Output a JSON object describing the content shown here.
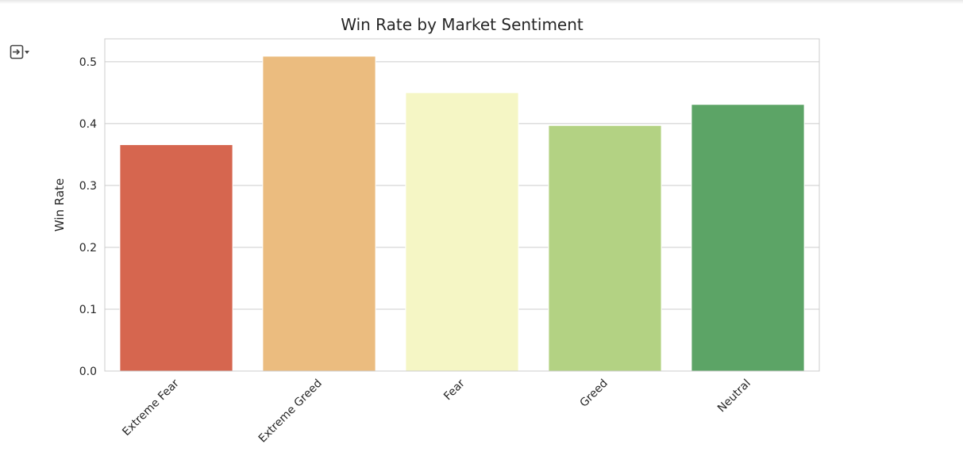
{
  "output_cell": {
    "toggle_icon": "output-collapse-icon"
  },
  "chart_data": {
    "type": "bar",
    "title": "Win Rate by Market Sentiment",
    "xlabel": "",
    "ylabel": "Win Rate",
    "categories": [
      "Extreme Fear",
      "Extreme Greed",
      "Fear",
      "Greed",
      "Neutral"
    ],
    "values": [
      0.366,
      0.509,
      0.45,
      0.397,
      0.431
    ],
    "colors": [
      "#d6664f",
      "#ebbc7f",
      "#f5f6c5",
      "#b3d283",
      "#5ca466"
    ],
    "ylim": [
      0,
      0.537
    ],
    "yticks": [
      0.0,
      0.1,
      0.2,
      0.3,
      0.4,
      0.5
    ],
    "ytick_labels": [
      "0.0",
      "0.1",
      "0.2",
      "0.3",
      "0.4",
      "0.5"
    ],
    "grid": true,
    "legend": "none"
  }
}
